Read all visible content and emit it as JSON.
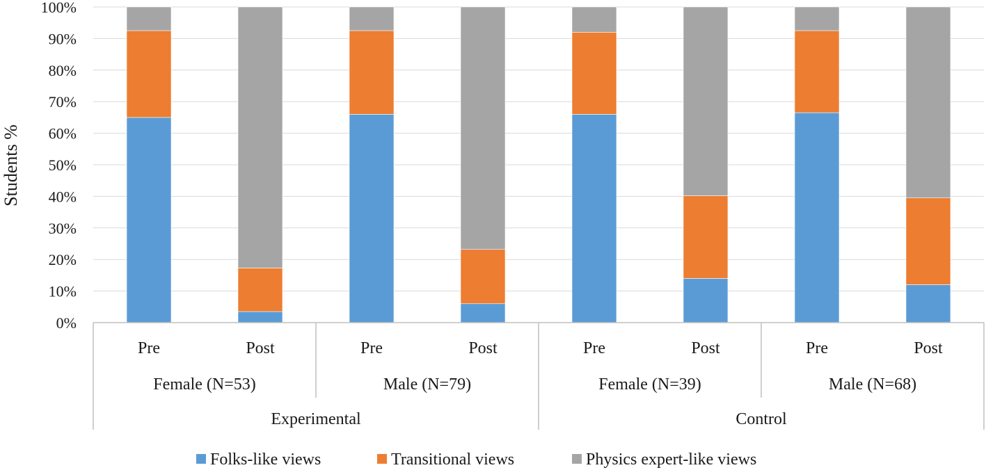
{
  "chart_data": {
    "type": "bar",
    "stacked": true,
    "percent_stacked": true,
    "ylabel": "Students %",
    "xlabel": "",
    "ylim": [
      0,
      100
    ],
    "y_ticks": [
      "0%",
      "10%",
      "20%",
      "30%",
      "40%",
      "50%",
      "60%",
      "70%",
      "80%",
      "90%",
      "100%"
    ],
    "grid": "horizontal",
    "legend_position": "bottom",
    "categories": [
      "Pre",
      "Post",
      "Pre",
      "Post",
      "Pre",
      "Post",
      "Pre",
      "Post"
    ],
    "subgroups": [
      {
        "label": "Female (N=53)",
        "span": [
          0,
          1
        ]
      },
      {
        "label": "Male (N=79)",
        "span": [
          2,
          3
        ]
      },
      {
        "label": "Female (N=39)",
        "span": [
          4,
          5
        ]
      },
      {
        "label": "Male (N=68)",
        "span": [
          6,
          7
        ]
      }
    ],
    "groups": [
      {
        "label": "Experimental",
        "span": [
          0,
          3
        ]
      },
      {
        "label": "Control",
        "span": [
          4,
          7
        ]
      }
    ],
    "series": [
      {
        "name": "Folks-like views",
        "color": "#5B9BD5",
        "values": [
          65,
          3.5,
          66,
          6,
          66,
          14,
          66.5,
          12
        ]
      },
      {
        "name": "Transitional views",
        "color": "#ED7D31",
        "values": [
          27.5,
          13.8,
          26.5,
          17.2,
          26,
          26.2,
          26,
          27.5
        ]
      },
      {
        "name": "Physics expert-like views",
        "color": "#A5A5A5",
        "values": [
          7.5,
          82.7,
          7.5,
          76.8,
          8,
          59.8,
          7.5,
          60.5
        ]
      }
    ]
  }
}
